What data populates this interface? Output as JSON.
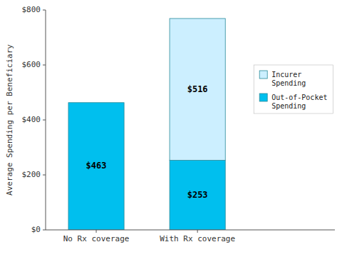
{
  "chart_data": {
    "type": "bar",
    "stacked": true,
    "data_labels": true,
    "legend": "right",
    "grid": false,
    "categories": [
      "No Rx coverage",
      "With Rx coverage"
    ],
    "series": [
      {
        "name": "Out-of-Pocket\nSpending",
        "color": "#00BFEE",
        "values": [
          463,
          253
        ],
        "value_labels": [
          "$463",
          "$253"
        ]
      },
      {
        "name": "Incurer\nSpending",
        "color": "#CCEFFF",
        "values": [
          0,
          516
        ],
        "value_labels": [
          null,
          "$516"
        ]
      }
    ],
    "ylabel": "Average Spending per Beneficiary",
    "ylim": [
      0,
      800
    ],
    "yticks": [
      {
        "value": 0,
        "label": "$0"
      },
      {
        "value": 200,
        "label": "$200"
      },
      {
        "value": 400,
        "label": "$400"
      },
      {
        "value": 600,
        "label": "$600"
      },
      {
        "value": 800,
        "label": "$800"
      }
    ]
  }
}
